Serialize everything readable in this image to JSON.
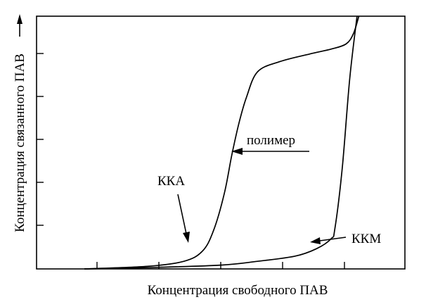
{
  "chart_data": {
    "type": "line",
    "title": "",
    "xlabel": "Концентрация свободного ПАВ",
    "ylabel": "Концентрация связанного ПАВ",
    "grid": false,
    "legend": "none",
    "series": [
      {
        "name": "",
        "x": [
          0.13,
          0.3,
          0.4,
          0.45,
          0.48,
          0.51,
          0.53,
          0.55,
          0.57,
          0.6,
          0.66,
          0.74,
          0.8,
          0.84,
          0.86,
          0.875
        ],
        "y": [
          0.0,
          0.01,
          0.03,
          0.07,
          0.15,
          0.3,
          0.45,
          0.58,
          0.68,
          0.78,
          0.82,
          0.85,
          0.87,
          0.89,
          0.93,
          1.0
        ]
      },
      {
        "name": "",
        "x": [
          0.13,
          0.3,
          0.5,
          0.6,
          0.7,
          0.76,
          0.8,
          0.81,
          0.83,
          0.85,
          0.87
        ],
        "y": [
          0.0,
          0.005,
          0.015,
          0.03,
          0.05,
          0.08,
          0.12,
          0.16,
          0.4,
          0.75,
          1.0
        ]
      }
    ],
    "annotations": [
      {
        "text": "полимер"
      },
      {
        "text": "ККА"
      },
      {
        "text": "ККМ"
      }
    ]
  }
}
